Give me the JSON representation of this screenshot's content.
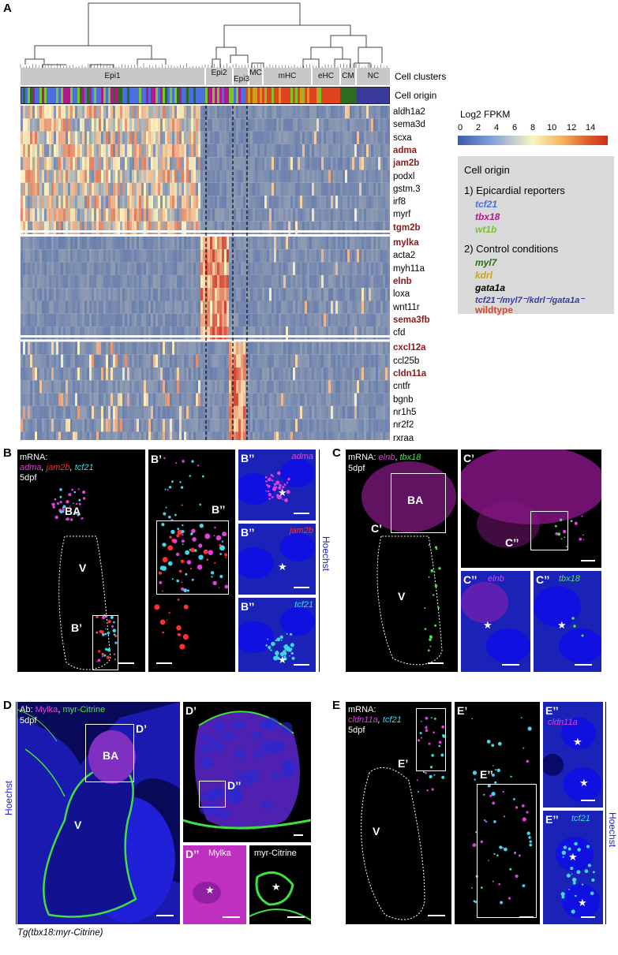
{
  "panel_labels": {
    "A": "A",
    "B": "B",
    "C": "C",
    "D": "D",
    "E": "E"
  },
  "heatmap": {
    "cell_clusters_label": "Cell clusters",
    "cell_origin_label": "Cell origin",
    "clusters": [
      {
        "name": "Epi1",
        "frac": [
          0.0,
          0.485
        ]
      },
      {
        "name": "Epi2",
        "frac": [
          0.485,
          0.56
        ]
      },
      {
        "name": "Epi3",
        "frac": [
          0.56,
          0.605
        ]
      },
      {
        "name": "MC",
        "frac": [
          0.605,
          0.66
        ]
      },
      {
        "name": "mHC",
        "frac": [
          0.66,
          0.78
        ]
      },
      {
        "name": "eHC",
        "frac": [
          0.78,
          0.86
        ]
      },
      {
        "name": "CM",
        "frac": [
          0.86,
          0.905
        ]
      },
      {
        "name": "NC",
        "frac": [
          0.905,
          1.0
        ]
      }
    ],
    "genes": [
      {
        "name": "aldh1a2",
        "bold": false
      },
      {
        "name": "sema3d",
        "bold": false
      },
      {
        "name": "scxa",
        "bold": false
      },
      {
        "name": "adma",
        "bold": true
      },
      {
        "name": "jam2b",
        "bold": true
      },
      {
        "name": "podxl",
        "bold": false
      },
      {
        "name": "gstm.3",
        "bold": false
      },
      {
        "name": "irf8",
        "bold": false
      },
      {
        "name": "myrf",
        "bold": false
      },
      {
        "name": "tgm2b",
        "bold": true
      },
      {
        "name": "mylka",
        "bold": true
      },
      {
        "name": "acta2",
        "bold": false
      },
      {
        "name": "myh11a",
        "bold": false
      },
      {
        "name": "elnb",
        "bold": true
      },
      {
        "name": "loxa",
        "bold": false
      },
      {
        "name": "wnt11r",
        "bold": false
      },
      {
        "name": "sema3fb",
        "bold": true
      },
      {
        "name": "cfd",
        "bold": false
      },
      {
        "name": "cxcl12a",
        "bold": true
      },
      {
        "name": "ccl25b",
        "bold": false
      },
      {
        "name": "cldn11a",
        "bold": true
      },
      {
        "name": "cntfr",
        "bold": false
      },
      {
        "name": "bgnb",
        "bold": false
      },
      {
        "name": "nr1h5",
        "bold": false
      },
      {
        "name": "nr2f2",
        "bold": false
      },
      {
        "name": "rxraa",
        "bold": false
      }
    ],
    "colorbar_title": "Log2 FPKM",
    "colorbar_ticks": [
      "0",
      "2",
      "4",
      "6",
      "8",
      "10",
      "12",
      "14"
    ],
    "colors": {
      "low": "#3d5aa8",
      "mid": "#fbf4c0",
      "high": "#cf2a1e",
      "highlight_gene": "#8b1a1a"
    }
  },
  "legend": {
    "title": "Cell origin",
    "section1": "1) Epicardial reporters",
    "reporters": [
      {
        "text": "tcf21",
        "color": "#4a6fe0"
      },
      {
        "text": "tbx18",
        "color": "#b0198c"
      },
      {
        "text": "wt1b",
        "color": "#7ac52a"
      }
    ],
    "section2": "2) Control conditions",
    "controls": [
      {
        "text": "myl7",
        "color": "#2e6b1e"
      },
      {
        "text": "kdrl",
        "color": "#c9a215"
      },
      {
        "text": "gata1a",
        "color": "#000000"
      },
      {
        "text": "tcf21⁻/myl7⁻/kdrl⁻/gata1a⁻",
        "color": "#3a3a9a"
      },
      {
        "text": "wildtype",
        "color": "#e0431f"
      }
    ]
  },
  "panel_B": {
    "mrna": "mRNA:",
    "genes": [
      {
        "text": "adma",
        "color": "#e040e0"
      },
      {
        "text": "jam2b",
        "color": "#ff3030"
      },
      {
        "text": "tcf21",
        "color": "#40d8e8"
      }
    ],
    "stage": "5dpf",
    "BA": "BA",
    "V": "V",
    "Bp": "B’",
    "Bpp": "B’’",
    "inset_labels": [
      {
        "text": "adma",
        "color": "#e040e0"
      },
      {
        "text": "jam2b",
        "color": "#ff3030"
      },
      {
        "text": "tcf21",
        "color": "#40d8e8"
      }
    ],
    "hoechst": "Hoechst"
  },
  "panel_C": {
    "mrna": "mRNA:",
    "genes": [
      {
        "text": "elnb",
        "color": "#e040e0"
      },
      {
        "text": "tbx18",
        "color": "#50e050"
      }
    ],
    "stage": "5dpf",
    "BA": "BA",
    "V": "V",
    "Cp": "C’",
    "Cpp": "C’’",
    "inset_labels": [
      {
        "text": "elnb",
        "color": "#e040e0"
      },
      {
        "text": "tbx18",
        "color": "#50e050"
      }
    ]
  },
  "panel_D": {
    "ab": "Ab:",
    "genes": [
      {
        "text": "Mylka",
        "color": "#e040e0"
      },
      {
        "text": "myr-Citrine",
        "color": "#50e050"
      }
    ],
    "stage": "5dpf",
    "BA": "BA",
    "V": "V",
    "Dp": "D’",
    "Dpp": "D’’",
    "inset_labels": [
      {
        "text": "Mylka",
        "color": "#ffffff"
      },
      {
        "text": "myr-Citrine",
        "color": "#ffffff"
      }
    ],
    "hoechst": "Hoechst",
    "caption": "Tg(tbx18:myr-Citrine)"
  },
  "panel_E": {
    "mrna": "mRNA:",
    "genes": [
      {
        "text": "cldn11a",
        "color": "#e040e0"
      },
      {
        "text": "tcf21",
        "color": "#40d8e8"
      }
    ],
    "stage": "5dpf",
    "V": "V",
    "Ep": "E’",
    "Epp": "E’’",
    "inset_labels": [
      {
        "text": "cldn11a",
        "color": "#e040e0"
      },
      {
        "text": "tcf21",
        "color": "#40d8e8"
      }
    ],
    "hoechst": "Hoechst"
  }
}
